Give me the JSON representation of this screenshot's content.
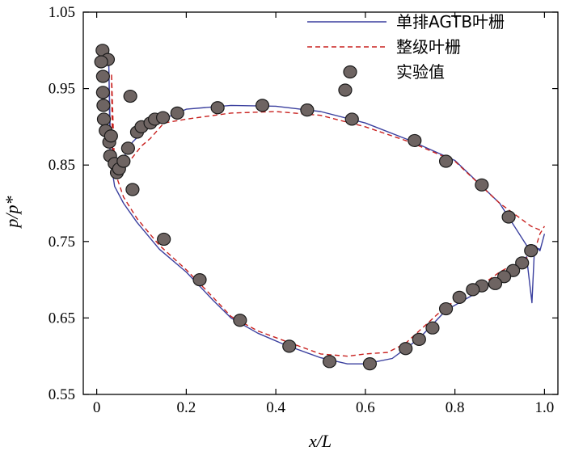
{
  "chart_data": {
    "type": "line",
    "title": "",
    "xlabel": "x/L",
    "ylabel": "p/p*",
    "xlim": [
      -0.03,
      1.03
    ],
    "ylim": [
      0.55,
      1.05
    ],
    "xticks": [
      0,
      0.2,
      0.4,
      0.6,
      0.8,
      1
    ],
    "xtick_labels": [
      "0",
      "0.2",
      "0.4",
      "0.6",
      "0.8",
      "1.0"
    ],
    "yticks": [
      0.55,
      0.65,
      0.75,
      0.85,
      0.95,
      1.05
    ],
    "ytick_labels": [
      "0.55",
      "0.65",
      "0.75",
      "0.85",
      "0.95",
      "1.05"
    ],
    "grid": false,
    "legend_position": "top-right",
    "series": [
      {
        "name": "单排AGTB叶栅",
        "style": "solid",
        "color": "#3a3f9e",
        "x": [
          0.99,
          0.96,
          0.9,
          0.8,
          0.7,
          0.6,
          0.5,
          0.4,
          0.3,
          0.2,
          0.12,
          0.08,
          0.06,
          0.05,
          0.04,
          0.035,
          0.03,
          0.027,
          0.03,
          0.04,
          0.06,
          0.09,
          0.14,
          0.2,
          0.26,
          0.3,
          0.36,
          0.42,
          0.5,
          0.56,
          0.6,
          0.66,
          0.69,
          0.72,
          0.78,
          0.84,
          0.9,
          0.94,
          0.96,
          0.972,
          0.978,
          0.99,
          1.0
        ],
        "y": [
          0.74,
          0.745,
          0.8,
          0.856,
          0.882,
          0.905,
          0.92,
          0.927,
          0.928,
          0.923,
          0.903,
          0.88,
          0.86,
          0.85,
          0.855,
          0.87,
          0.9,
          0.98,
          0.86,
          0.822,
          0.8,
          0.775,
          0.74,
          0.71,
          0.673,
          0.65,
          0.63,
          0.615,
          0.598,
          0.59,
          0.59,
          0.597,
          0.61,
          0.623,
          0.66,
          0.68,
          0.702,
          0.718,
          0.73,
          0.67,
          0.745,
          0.738,
          0.76
        ]
      },
      {
        "name": "整级叶栅",
        "style": "dashed",
        "color": "#c8201e",
        "x": [
          0.99,
          0.97,
          0.9,
          0.8,
          0.7,
          0.6,
          0.5,
          0.4,
          0.3,
          0.2,
          0.15,
          0.12,
          0.1,
          0.08,
          0.065,
          0.05,
          0.04,
          0.035,
          0.033,
          0.04,
          0.06,
          0.09,
          0.14,
          0.2,
          0.26,
          0.3,
          0.36,
          0.42,
          0.5,
          0.56,
          0.6,
          0.65,
          0.69,
          0.72,
          0.78,
          0.84,
          0.9,
          0.95,
          0.975,
          0.99,
          1.0
        ],
        "y": [
          0.765,
          0.77,
          0.8,
          0.855,
          0.88,
          0.9,
          0.915,
          0.92,
          0.918,
          0.91,
          0.905,
          0.885,
          0.875,
          0.86,
          0.85,
          0.845,
          0.85,
          0.875,
          0.97,
          0.842,
          0.808,
          0.78,
          0.745,
          0.713,
          0.677,
          0.652,
          0.633,
          0.62,
          0.603,
          0.6,
          0.603,
          0.605,
          0.617,
          0.633,
          0.665,
          0.685,
          0.71,
          0.726,
          0.732,
          0.76,
          0.77
        ]
      },
      {
        "name": "实验值",
        "style": "markers",
        "color": "#6e6462",
        "x": [
          0.013,
          0.025,
          0.01,
          0.014,
          0.014,
          0.015,
          0.016,
          0.02,
          0.028,
          0.03,
          0.032,
          0.04,
          0.045,
          0.05,
          0.06,
          0.07,
          0.08,
          0.09,
          0.1,
          0.12,
          0.13,
          0.18,
          0.27,
          0.37,
          0.47,
          0.57,
          0.71,
          0.78,
          0.86,
          0.92,
          0.97,
          0.95,
          0.93,
          0.91,
          0.89,
          0.86,
          0.84,
          0.81,
          0.78,
          0.75,
          0.72,
          0.69,
          0.61,
          0.52,
          0.43,
          0.32,
          0.23,
          0.15,
          0.075,
          0.148,
          0.555
        ],
        "y": [
          1.0,
          0.988,
          0.985,
          0.966,
          0.945,
          0.928,
          0.91,
          0.895,
          0.88,
          0.862,
          0.888,
          0.852,
          0.84,
          0.845,
          0.855,
          0.872,
          0.818,
          0.893,
          0.9,
          0.905,
          0.91,
          0.918,
          0.925,
          0.928,
          0.922,
          0.91,
          0.882,
          0.855,
          0.824,
          0.782,
          0.738,
          0.722,
          0.712,
          0.704,
          0.695,
          0.692,
          0.687,
          0.677,
          0.662,
          0.637,
          0.622,
          0.61,
          0.59,
          0.593,
          0.613,
          0.647,
          0.7,
          0.753,
          0.94,
          0.912,
          0.948
        ]
      }
    ]
  }
}
